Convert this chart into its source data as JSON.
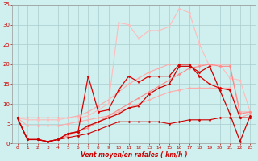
{
  "background_color": "#cff0ee",
  "grid_color": "#aacccc",
  "xlim": [
    -0.5,
    23.5
  ],
  "ylim": [
    0,
    35
  ],
  "yticks": [
    0,
    5,
    10,
    15,
    20,
    25,
    30,
    35
  ],
  "xticks": [
    0,
    1,
    2,
    3,
    4,
    5,
    6,
    7,
    8,
    9,
    10,
    11,
    12,
    13,
    14,
    15,
    16,
    17,
    18,
    19,
    20,
    21,
    22,
    23
  ],
  "xlabel": "Vent moyen/en rafales ( km/h )",
  "xlabel_color": "#cc0000",
  "tick_color": "#cc0000",
  "lines": [
    {
      "x": [
        0,
        1,
        2,
        3,
        4,
        5,
        6,
        7,
        8,
        9,
        10,
        11,
        12,
        13,
        14,
        15,
        16,
        17,
        18,
        19,
        20,
        21,
        22,
        23
      ],
      "y": [
        6.5,
        6.5,
        6.5,
        6.5,
        6.5,
        6.5,
        7.0,
        8.0,
        9.5,
        11.0,
        13.0,
        15.0,
        16.5,
        18.0,
        19.0,
        20.0,
        20.0,
        20.0,
        20.0,
        20.0,
        20.0,
        20.0,
        8.0,
        8.0
      ],
      "color": "#ffaaaa",
      "marker": "D",
      "markersize": 1.5,
      "linewidth": 0.8
    },
    {
      "x": [
        0,
        1,
        2,
        3,
        4,
        5,
        6,
        7,
        8,
        9,
        10,
        11,
        12,
        13,
        14,
        15,
        16,
        17,
        18,
        19,
        20,
        21,
        22,
        23
      ],
      "y": [
        6.5,
        4.5,
        4.5,
        4.5,
        4.5,
        5.0,
        5.5,
        6.0,
        6.5,
        7.0,
        8.0,
        9.0,
        10.0,
        11.0,
        12.0,
        13.0,
        13.5,
        14.0,
        14.0,
        14.0,
        14.0,
        14.0,
        6.5,
        7.5
      ],
      "color": "#ffaaaa",
      "marker": "D",
      "markersize": 1.5,
      "linewidth": 0.8
    },
    {
      "x": [
        0,
        1,
        2,
        3,
        4,
        5,
        6,
        7,
        8,
        9,
        10,
        11,
        12,
        13,
        14,
        15,
        16,
        17,
        18,
        19,
        20,
        21,
        22,
        23
      ],
      "y": [
        6.5,
        6.0,
        6.0,
        6.0,
        6.0,
        6.5,
        6.5,
        7.0,
        8.5,
        10.0,
        30.5,
        30.0,
        26.5,
        28.5,
        28.5,
        29.5,
        34.0,
        33.0,
        25.0,
        19.5,
        20.0,
        16.5,
        16.0,
        8.0
      ],
      "color": "#ffbbbb",
      "marker": "D",
      "markersize": 1.5,
      "linewidth": 0.8
    },
    {
      "x": [
        0,
        1,
        2,
        3,
        4,
        5,
        6,
        7,
        8,
        9,
        10,
        11,
        12,
        13,
        14,
        15,
        16,
        17,
        18,
        19,
        20,
        21,
        22,
        23
      ],
      "y": [
        6.5,
        1.0,
        1.0,
        0.5,
        1.0,
        2.0,
        3.0,
        4.0,
        5.5,
        7.0,
        8.5,
        10.0,
        11.5,
        13.0,
        14.5,
        16.0,
        17.5,
        19.0,
        19.5,
        20.0,
        19.5,
        19.5,
        7.5,
        8.0
      ],
      "color": "#ff8888",
      "marker": "D",
      "markersize": 1.5,
      "linewidth": 0.8
    },
    {
      "x": [
        0,
        1,
        2,
        3,
        4,
        5,
        6,
        7,
        8,
        9,
        10,
        11,
        12,
        13,
        14,
        15,
        16,
        17,
        18,
        19,
        20,
        21,
        22,
        23
      ],
      "y": [
        6.5,
        1.0,
        1.0,
        0.5,
        1.0,
        2.5,
        3.0,
        17.0,
        8.0,
        8.5,
        13.5,
        17.0,
        15.5,
        17.0,
        17.0,
        17.0,
        20.0,
        20.0,
        17.0,
        15.0,
        14.0,
        13.5,
        6.5,
        6.5
      ],
      "color": "#dd0000",
      "marker": "D",
      "markersize": 1.5,
      "linewidth": 0.9
    },
    {
      "x": [
        0,
        1,
        2,
        3,
        4,
        5,
        6,
        7,
        8,
        9,
        10,
        11,
        12,
        13,
        14,
        15,
        16,
        17,
        18,
        19,
        20,
        21,
        22,
        23
      ],
      "y": [
        6.5,
        1.0,
        1.0,
        0.5,
        1.0,
        2.5,
        3.0,
        4.5,
        5.5,
        6.5,
        7.5,
        9.0,
        9.5,
        12.5,
        14.0,
        15.0,
        19.5,
        19.5,
        18.0,
        19.5,
        13.5,
        7.5,
        0.5,
        7.0
      ],
      "color": "#cc0000",
      "marker": "D",
      "markersize": 1.5,
      "linewidth": 0.9
    },
    {
      "x": [
        0,
        1,
        2,
        3,
        4,
        5,
        6,
        7,
        8,
        9,
        10,
        11,
        12,
        13,
        14,
        15,
        16,
        17,
        18,
        19,
        20,
        21,
        22,
        23
      ],
      "y": [
        6.5,
        1.0,
        1.0,
        0.5,
        1.0,
        1.5,
        2.0,
        2.5,
        3.5,
        4.5,
        5.5,
        5.5,
        5.5,
        5.5,
        5.5,
        5.0,
        5.5,
        6.0,
        6.0,
        6.0,
        6.5,
        6.5,
        6.5,
        6.5
      ],
      "color": "#cc0000",
      "marker": "D",
      "markersize": 1.5,
      "linewidth": 0.8
    }
  ]
}
